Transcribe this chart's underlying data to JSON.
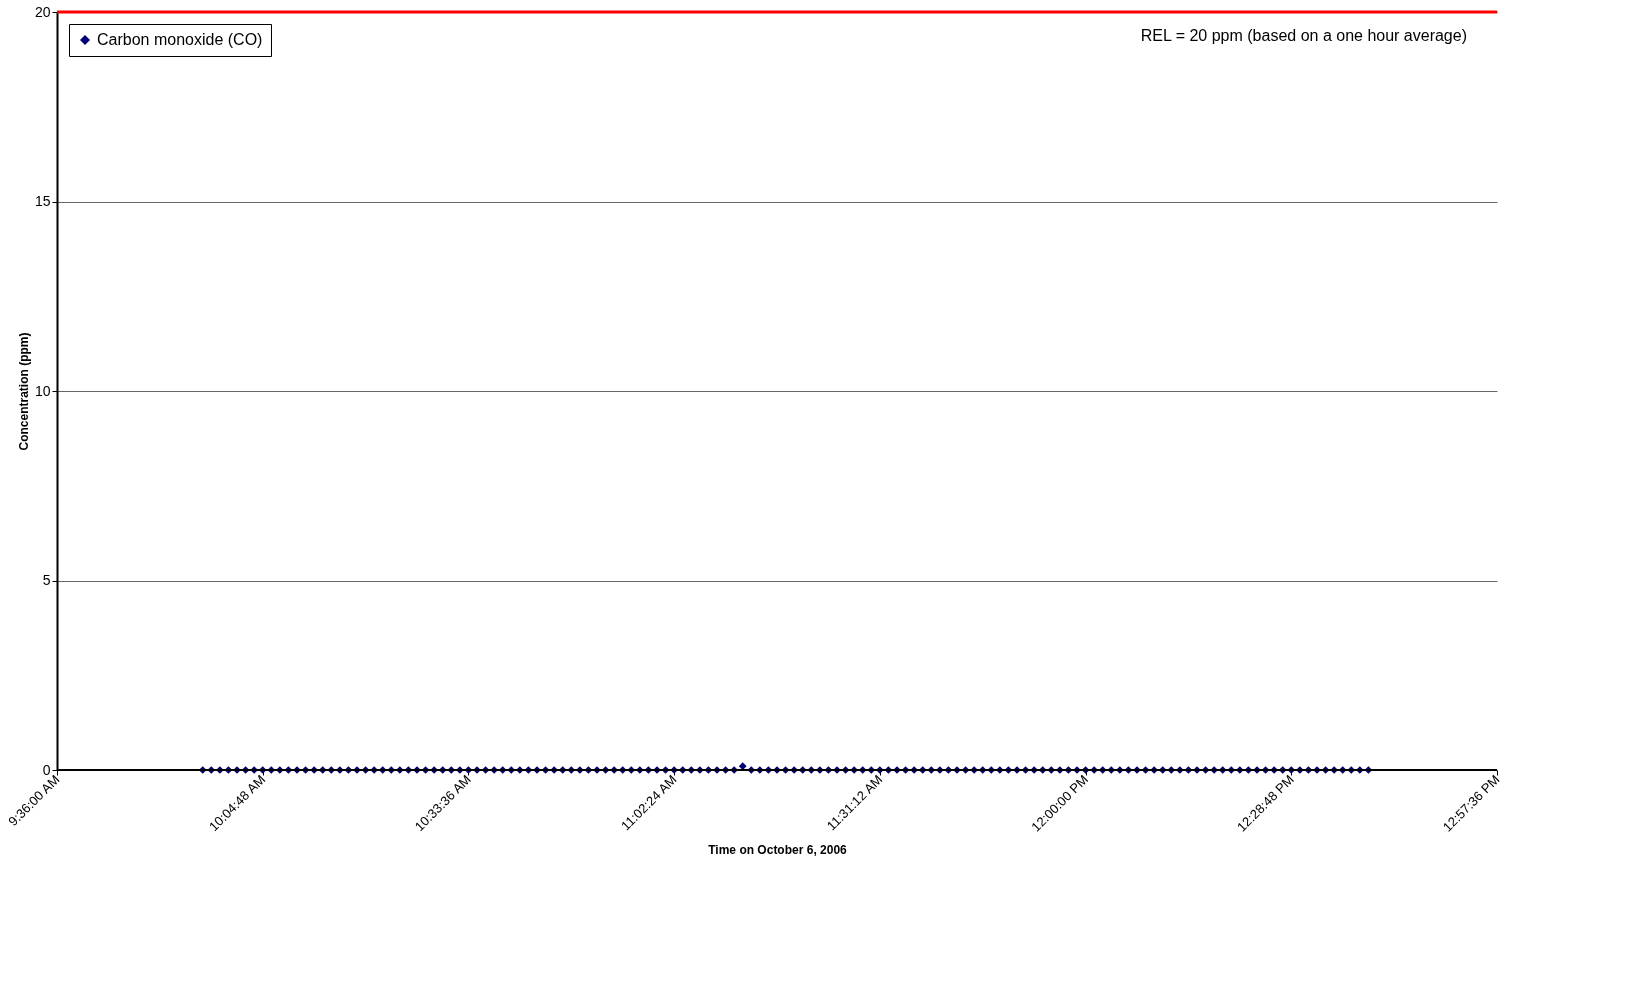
{
  "chart_data": {
    "type": "scatter",
    "xlabel": "Time on October 6, 2006",
    "ylabel": "Concentration (ppm)",
    "xlim": [
      9.6,
      12.96
    ],
    "xticks": [
      {
        "value": 9.6,
        "label": "9:36:00 AM"
      },
      {
        "value": 10.08,
        "label": "10:04:48 AM"
      },
      {
        "value": 10.56,
        "label": "10:33:36 AM"
      },
      {
        "value": 11.04,
        "label": "11:02:24 AM"
      },
      {
        "value": 11.52,
        "label": "11:31:12 AM"
      },
      {
        "value": 12.0,
        "label": "12:00:00 PM"
      },
      {
        "value": 12.48,
        "label": "12:28:48 PM"
      },
      {
        "value": 12.96,
        "label": "12:57:36 PM"
      }
    ],
    "ylim": [
      0,
      20
    ],
    "yticks": [
      0,
      5,
      10,
      15,
      20
    ],
    "grid": "y",
    "legend": "top left",
    "marker": "diamond",
    "ref_lines": [
      {
        "axis": "y",
        "value": 20,
        "label": "REL = 20 ppm (based on a one hour average)",
        "color": "#ff0000"
      }
    ],
    "series": [
      {
        "name": "Carbon monoxide (CO)",
        "color": "#000080",
        "x": [
          9.94,
          9.96,
          9.98,
          10,
          10.02,
          10.04,
          10.06,
          10.08,
          10.1,
          10.12,
          10.14,
          10.16,
          10.18,
          10.2,
          10.22,
          10.24,
          10.26,
          10.28,
          10.3,
          10.32,
          10.34,
          10.36,
          10.38,
          10.4,
          10.42,
          10.44,
          10.46,
          10.48,
          10.5,
          10.52,
          10.54,
          10.56,
          10.58,
          10.6,
          10.62,
          10.64,
          10.66,
          10.68,
          10.7,
          10.72,
          10.74,
          10.76,
          10.78,
          10.8,
          10.82,
          10.84,
          10.86,
          10.88,
          10.9,
          10.92,
          10.94,
          10.96,
          10.98,
          11,
          11.02,
          11.04,
          11.06,
          11.08,
          11.1,
          11.12,
          11.14,
          11.16,
          11.18,
          11.2,
          11.22,
          11.24,
          11.26,
          11.28,
          11.3,
          11.32,
          11.34,
          11.36,
          11.38,
          11.4,
          11.42,
          11.44,
          11.46,
          11.48,
          11.5,
          11.52,
          11.54,
          11.56,
          11.58,
          11.6,
          11.62,
          11.64,
          11.66,
          11.68,
          11.7,
          11.72,
          11.74,
          11.76,
          11.78,
          11.8,
          11.82,
          11.84,
          11.86,
          11.88,
          11.9,
          11.92,
          11.94,
          11.96,
          11.98,
          12,
          12.02,
          12.04,
          12.06,
          12.08,
          12.1,
          12.12,
          12.14,
          12.16,
          12.18,
          12.2,
          12.22,
          12.24,
          12.26,
          12.28,
          12.3,
          12.32,
          12.34,
          12.36,
          12.38,
          12.4,
          12.42,
          12.44,
          12.46,
          12.48,
          12.5,
          12.52,
          12.54,
          12.56,
          12.58,
          12.6,
          12.62,
          12.64,
          12.66
        ],
        "values": [
          0,
          0,
          0,
          0,
          0,
          0,
          0,
          0,
          0,
          0,
          0,
          0,
          0,
          0,
          0,
          0,
          0,
          0,
          0,
          0,
          0,
          0,
          0,
          0,
          0,
          0,
          0,
          0,
          0,
          0,
          0,
          0,
          0,
          0,
          0,
          0,
          0,
          0,
          0,
          0,
          0,
          0,
          0,
          0,
          0,
          0,
          0,
          0,
          0,
          0,
          0,
          0,
          0,
          0,
          0,
          0,
          0,
          0,
          0,
          0,
          0,
          0,
          0,
          0.1,
          0,
          0,
          0,
          0,
          0,
          0,
          0,
          0,
          0,
          0,
          0,
          0,
          0,
          0,
          0,
          0,
          0,
          0,
          0,
          0,
          0,
          0,
          0,
          0,
          0,
          0,
          0,
          0,
          0,
          0,
          0,
          0,
          0,
          0,
          0,
          0,
          0,
          0,
          0,
          0,
          0,
          0,
          0,
          0,
          0,
          0,
          0,
          0,
          0,
          0,
          0,
          0,
          0,
          0,
          0,
          0,
          0,
          0,
          0,
          0,
          0,
          0,
          0,
          0,
          0,
          0,
          0,
          0,
          0,
          0,
          0,
          0,
          0
        ]
      }
    ]
  }
}
